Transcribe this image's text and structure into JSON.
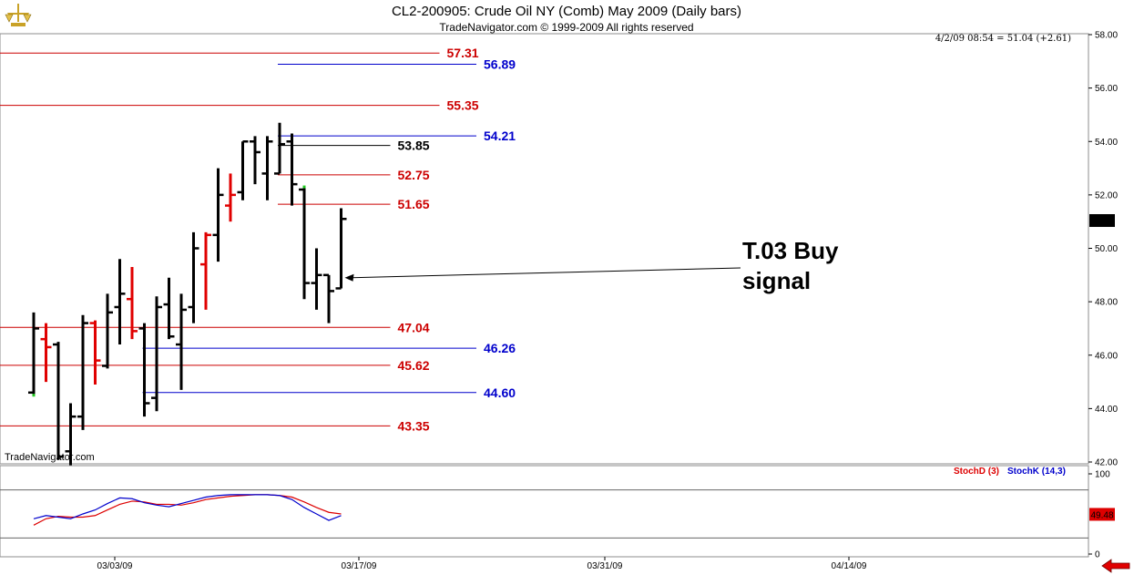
{
  "header": {
    "title": "CL2-200905:  Crude Oil NY (Comb) May 2009  (Daily bars)",
    "subtitle": "TradeNavigator.com © 1999-2009 All rights reserved",
    "info": "4/2/09 08:54 = 51.04 (+2.61)",
    "watermark": "TradeNavigator.com"
  },
  "colors": {
    "bar_up": "#000000",
    "bar_down": "#e00000",
    "level_red": "#cc0000",
    "level_blue": "#0000cc",
    "stochD": "#dd0000",
    "stochK": "#0000cc",
    "last_price_bg": "#000000",
    "stoch_value_bg": "#dd0000"
  },
  "chart_data": [
    {
      "type": "ohlc",
      "ylim": [
        42,
        58
      ],
      "y_ticks": [
        "42.00",
        "44.00",
        "46.00",
        "48.00",
        "50.00",
        "52.00",
        "54.00",
        "56.00",
        "58.00"
      ],
      "x_ticks": [
        "03/03/09",
        "03/17/09",
        "03/31/09",
        "04/14/09"
      ],
      "last_price": "51.04",
      "bars": [
        {
          "o": 44.6,
          "h": 47.6,
          "l": 44.5,
          "c": 47.0,
          "down": false
        },
        {
          "o": 46.6,
          "h": 47.2,
          "l": 45.0,
          "c": 46.3,
          "down": true
        },
        {
          "o": 46.4,
          "h": 46.5,
          "l": 42.1,
          "c": 42.2,
          "down": false
        },
        {
          "o": 42.4,
          "h": 44.2,
          "l": 41.8,
          "c": 43.7,
          "down": false
        },
        {
          "o": 43.7,
          "h": 47.5,
          "l": 43.2,
          "c": 47.2,
          "down": false
        },
        {
          "o": 47.2,
          "h": 47.3,
          "l": 44.9,
          "c": 45.8,
          "down": true
        },
        {
          "o": 45.6,
          "h": 48.3,
          "l": 45.5,
          "c": 47.6,
          "down": false
        },
        {
          "o": 47.8,
          "h": 49.6,
          "l": 46.4,
          "c": 48.3,
          "down": false
        },
        {
          "o": 48.1,
          "h": 49.3,
          "l": 46.6,
          "c": 46.9,
          "down": true
        },
        {
          "o": 47.0,
          "h": 47.2,
          "l": 43.7,
          "c": 44.2,
          "down": false
        },
        {
          "o": 44.4,
          "h": 48.2,
          "l": 43.9,
          "c": 47.8,
          "down": false
        },
        {
          "o": 47.9,
          "h": 48.9,
          "l": 46.6,
          "c": 46.7,
          "down": false
        },
        {
          "o": 46.4,
          "h": 48.3,
          "l": 44.7,
          "c": 47.7,
          "down": false
        },
        {
          "o": 47.8,
          "h": 50.6,
          "l": 47.2,
          "c": 50.0,
          "down": false
        },
        {
          "o": 49.4,
          "h": 50.6,
          "l": 47.7,
          "c": 50.5,
          "down": true
        },
        {
          "o": 50.5,
          "h": 53.0,
          "l": 49.5,
          "c": 52.0,
          "down": false
        },
        {
          "o": 51.6,
          "h": 52.8,
          "l": 51.0,
          "c": 52.0,
          "down": true
        },
        {
          "o": 52.1,
          "h": 54.0,
          "l": 51.8,
          "c": 54.0,
          "down": false
        },
        {
          "o": 54.0,
          "h": 54.2,
          "l": 52.4,
          "c": 53.6,
          "down": false
        },
        {
          "o": 52.8,
          "h": 54.2,
          "l": 51.8,
          "c": 54.0,
          "down": false
        },
        {
          "o": 52.8,
          "h": 54.7,
          "l": 52.8,
          "c": 53.9,
          "down": false
        },
        {
          "o": 54.0,
          "h": 54.3,
          "l": 51.6,
          "c": 52.4,
          "down": false
        },
        {
          "o": 52.2,
          "h": 52.3,
          "l": 48.1,
          "c": 48.7,
          "down": false
        },
        {
          "o": 48.7,
          "h": 50.0,
          "l": 47.7,
          "c": 49.0,
          "down": false
        },
        {
          "o": 49.0,
          "h": 49.0,
          "l": 47.2,
          "c": 48.4,
          "down": false
        },
        {
          "o": 48.5,
          "h": 51.5,
          "l": 48.5,
          "c": 51.1,
          "down": false
        }
      ],
      "green_markers": [
        {
          "bar": 0,
          "price": 44.5
        },
        {
          "bar": 22,
          "price": 52.3
        }
      ],
      "levels": [
        {
          "value": "57.31",
          "color": "red",
          "start_bar": -1,
          "end_bar": 33
        },
        {
          "value": "56.89",
          "color": "blue",
          "start_bar": 20,
          "end_bar": 36
        },
        {
          "value": "55.35",
          "color": "red",
          "start_bar": -1,
          "end_bar": 33
        },
        {
          "value": "54.21",
          "color": "blue",
          "start_bar": 20,
          "end_bar": 36
        },
        {
          "value": "53.85",
          "color": "black",
          "start_bar": 20,
          "end_bar": 29
        },
        {
          "value": "52.75",
          "color": "red",
          "start_bar": 20,
          "end_bar": 29
        },
        {
          "value": "51.65",
          "color": "red",
          "start_bar": 20,
          "end_bar": 29
        },
        {
          "value": "47.04",
          "color": "red",
          "start_bar": -1,
          "end_bar": 29
        },
        {
          "value": "46.26",
          "color": "blue",
          "start_bar": 9,
          "end_bar": 36
        },
        {
          "value": "45.62",
          "color": "red",
          "start_bar": -1,
          "end_bar": 29
        },
        {
          "value": "44.60",
          "color": "blue",
          "start_bar": 9,
          "end_bar": 36
        },
        {
          "value": "43.35",
          "color": "red",
          "start_bar": -1,
          "end_bar": 29
        }
      ],
      "annotation": {
        "line1": "T.03 Buy",
        "line2": "signal",
        "bar": 25,
        "price": 48.9
      }
    },
    {
      "type": "line",
      "ylim": [
        0,
        100
      ],
      "y_ticks": [
        "0",
        "100"
      ],
      "levels": [
        80,
        20
      ],
      "current_value": "49.48",
      "series": [
        {
          "name": "StochD (3)",
          "color": "stochD",
          "values": [
            36,
            44,
            47,
            46,
            46,
            48,
            55,
            62,
            66,
            65,
            62,
            62,
            61,
            64,
            68,
            70,
            72,
            73,
            74,
            74,
            73,
            71,
            65,
            58,
            52,
            50
          ]
        },
        {
          "name": "StochK (14,3)",
          "color": "stochK",
          "values": [
            44,
            48,
            46,
            44,
            50,
            55,
            63,
            70,
            69,
            64,
            61,
            59,
            63,
            67,
            71,
            73,
            74,
            74,
            74,
            74,
            73,
            68,
            58,
            50,
            42,
            48
          ]
        }
      ]
    }
  ]
}
